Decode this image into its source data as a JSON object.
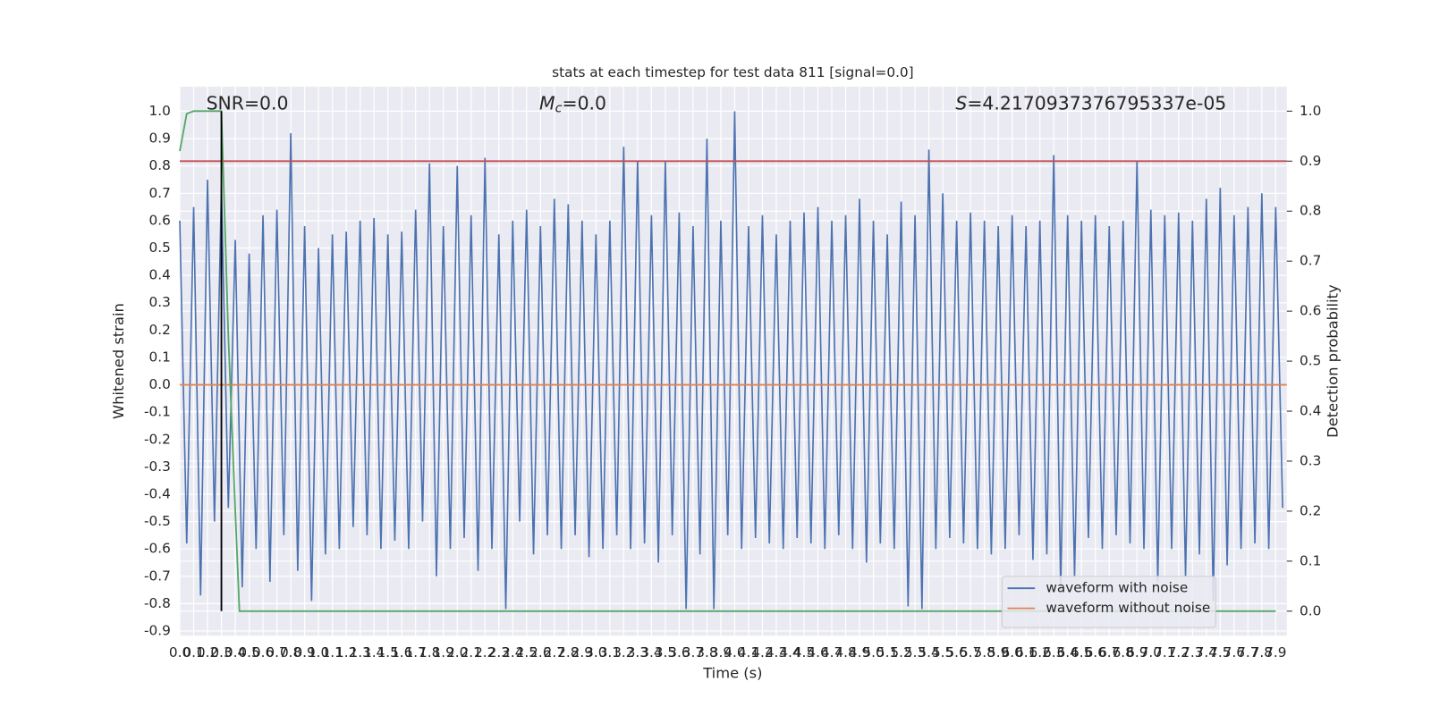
{
  "chart_data": {
    "type": "line",
    "title": "stats at each timestep for test data 811 [signal=0.0]",
    "xlabel": "Time (s)",
    "ylabel": "Whitened strain",
    "y2label": "Detection probability",
    "annotations": [
      [
        "SNR=0.0"
      ],
      [
        "M",
        "c",
        "=0.0"
      ],
      [
        "S",
        "=4.2170937376795337e-05"
      ]
    ],
    "xlim": [
      0,
      7.98
    ],
    "ylim": [
      -0.917,
      1.09
    ],
    "y2lim": [
      -0.049,
      1.049
    ],
    "xticks": [
      {
        "value": 0,
        "label": "0.0"
      },
      0.1,
      0.2,
      0.3,
      0.4,
      0.5,
      0.6,
      0.7,
      0.8,
      0.9,
      {
        "value": 1,
        "label": "1.0"
      },
      1.1,
      1.2,
      1.3,
      1.4,
      1.5,
      1.6,
      1.7,
      1.8,
      1.9,
      {
        "value": 2,
        "label": "2.0"
      },
      2.1,
      2.2,
      2.3,
      2.4,
      2.5,
      2.6,
      2.7,
      2.8,
      2.9,
      {
        "value": 3,
        "label": "3.0"
      },
      3.1,
      3.2,
      3.3,
      3.4,
      3.5,
      3.6,
      3.7,
      3.8,
      3.9,
      {
        "value": 4,
        "label": "4.0"
      },
      4.1,
      4.2,
      4.3,
      4.4,
      4.5,
      4.6,
      4.7,
      4.8,
      4.9,
      {
        "value": 5,
        "label": "5.0"
      },
      5.1,
      5.2,
      5.3,
      5.4,
      5.5,
      5.6,
      5.7,
      5.8,
      5.9,
      {
        "value": 6,
        "label": "6.0"
      },
      6.1,
      6.2,
      6.3,
      6.4,
      6.5,
      6.6,
      6.7,
      6.8,
      6.9,
      {
        "value": 7,
        "label": "7.0"
      },
      7.1,
      7.2,
      7.3,
      7.4,
      7.5,
      7.6,
      7.7,
      7.8,
      7.9
    ],
    "yticks": [
      -0.9,
      -0.8,
      -0.7,
      -0.6,
      -0.5,
      -0.4,
      -0.3,
      -0.2,
      -0.1,
      {
        "value": 0,
        "label": "0.0"
      },
      0.1,
      0.2,
      0.3,
      0.4,
      0.5,
      0.6,
      0.7,
      0.8,
      0.9,
      {
        "value": 1,
        "label": "1.0"
      }
    ],
    "y2ticks": [
      {
        "value": 0,
        "label": "0.0"
      },
      0.1,
      0.2,
      0.3,
      0.4,
      0.5,
      0.6,
      0.7,
      0.8,
      0.9,
      {
        "value": 1,
        "label": "1.0"
      }
    ],
    "grid": true,
    "legend": "lower right",
    "series": [
      {
        "name": "waveform with noise",
        "color": "#4c72b0",
        "x": [
          0,
          0.05,
          0.1,
          0.15,
          0.2,
          0.25,
          0.3,
          0.35,
          0.4,
          0.45,
          0.5,
          0.55,
          0.6,
          0.65,
          0.7,
          0.75,
          0.8,
          0.85,
          0.9,
          0.95,
          1,
          1.05,
          1.1,
          1.15,
          1.2,
          1.25,
          1.3,
          1.35,
          1.4,
          1.45,
          1.5,
          1.55,
          1.6,
          1.65,
          1.7,
          1.75,
          1.8,
          1.85,
          1.9,
          1.95,
          2,
          2.05,
          2.1,
          2.15,
          2.2,
          2.25,
          2.3,
          2.35,
          2.4,
          2.45,
          2.5,
          2.55,
          2.6,
          2.65,
          2.7,
          2.75,
          2.8,
          2.85,
          2.9,
          2.95,
          3,
          3.05,
          3.1,
          3.15,
          3.2,
          3.25,
          3.3,
          3.35,
          3.4,
          3.45,
          3.5,
          3.55,
          3.6,
          3.65,
          3.7,
          3.75,
          3.8,
          3.85,
          3.9,
          3.95,
          4,
          4.05,
          4.1,
          4.15,
          4.2,
          4.25,
          4.3,
          4.35,
          4.4,
          4.45,
          4.5,
          4.55,
          4.6,
          4.65,
          4.7,
          4.75,
          4.8,
          4.85,
          4.9,
          4.95,
          5,
          5.05,
          5.1,
          5.15,
          5.2,
          5.25,
          5.3,
          5.35,
          5.4,
          5.45,
          5.5,
          5.55,
          5.6,
          5.65,
          5.7,
          5.75,
          5.8,
          5.85,
          5.9,
          5.95,
          6,
          6.05,
          6.1,
          6.15,
          6.2,
          6.25,
          6.3,
          6.35,
          6.4,
          6.45,
          6.5,
          6.55,
          6.6,
          6.65,
          6.7,
          6.75,
          6.8,
          6.85,
          6.9,
          6.95,
          7,
          7.05,
          7.1,
          7.15,
          7.2,
          7.25,
          7.3,
          7.35,
          7.4,
          7.45,
          7.5,
          7.55,
          7.6,
          7.65,
          7.7,
          7.75,
          7.8,
          7.85,
          7.9,
          7.95
        ],
        "values": [
          0.6,
          -0.58,
          0.65,
          -0.77,
          0.75,
          -0.5,
          0.72,
          -0.45,
          0.53,
          -0.74,
          0.48,
          -0.6,
          0.62,
          -0.72,
          0.64,
          -0.55,
          0.92,
          -0.68,
          0.58,
          -0.79,
          0.5,
          -0.62,
          0.55,
          -0.6,
          0.56,
          -0.52,
          0.6,
          -0.55,
          0.61,
          -0.6,
          0.55,
          -0.57,
          0.56,
          -0.6,
          0.64,
          -0.5,
          0.81,
          -0.7,
          0.58,
          -0.6,
          0.8,
          -0.56,
          0.62,
          -0.68,
          0.83,
          -0.6,
          0.55,
          -0.82,
          0.6,
          -0.5,
          0.64,
          -0.62,
          0.58,
          -0.55,
          0.68,
          -0.6,
          0.66,
          -0.55,
          0.6,
          -0.63,
          0.55,
          -0.6,
          0.6,
          -0.55,
          0.87,
          -0.6,
          0.82,
          -0.58,
          0.62,
          -0.65,
          0.82,
          -0.55,
          0.63,
          -0.82,
          0.58,
          -0.62,
          0.9,
          -0.82,
          0.6,
          -0.55,
          1.0,
          -0.6,
          0.58,
          -0.56,
          0.62,
          -0.58,
          0.55,
          -0.6,
          0.6,
          -0.56,
          0.63,
          -0.58,
          0.65,
          -0.6,
          0.6,
          -0.55,
          0.62,
          -0.6,
          0.68,
          -0.65,
          0.6,
          -0.58,
          0.55,
          -0.6,
          0.67,
          -0.81,
          0.62,
          -0.82,
          0.86,
          -0.6,
          0.7,
          -0.56,
          0.6,
          -0.58,
          0.63,
          -0.6,
          0.6,
          -0.62,
          0.58,
          -0.6,
          0.62,
          -0.55,
          0.58,
          -0.64,
          0.6,
          -0.62,
          0.84,
          -0.75,
          0.62,
          -0.7,
          0.6,
          -0.56,
          0.62,
          -0.6,
          0.58,
          -0.55,
          0.6,
          -0.58,
          0.82,
          -0.6,
          0.64,
          -0.72,
          0.62,
          -0.6,
          0.63,
          -0.7,
          0.6,
          -0.62,
          0.68,
          -0.79,
          0.72,
          -0.66,
          0.62,
          -0.6,
          0.65,
          -0.58,
          0.7,
          -0.6,
          0.65,
          -0.45
        ]
      },
      {
        "name": "waveform without noise",
        "color": "#dd8452",
        "x": [
          0,
          7.98
        ],
        "values": [
          0,
          0
        ]
      },
      {
        "color": "#55a868",
        "axis": "y2",
        "x": [
          0,
          0.05,
          0.1,
          0.2,
          0.3,
          0.35,
          0.4,
          0.43,
          7.9
        ],
        "values": [
          0.92,
          0.995,
          1.0,
          1.0,
          1.0,
          0.55,
          0.2,
          0.0,
          0.0
        ]
      }
    ],
    "hlines": [
      {
        "value": 0.9,
        "axis": "y2",
        "color": "#c44e52"
      }
    ],
    "vlines": [
      {
        "x": 0.3,
        "y2": [
          0,
          1
        ],
        "color": "#000000"
      }
    ]
  }
}
